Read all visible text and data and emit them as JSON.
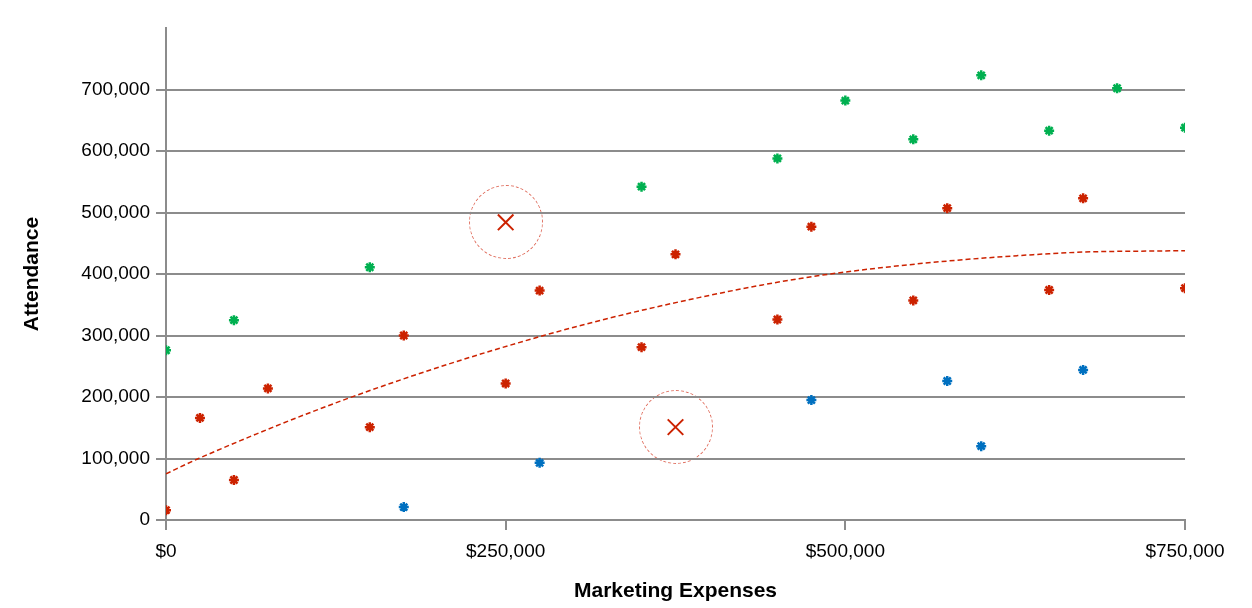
{
  "chart_data": {
    "type": "scatter",
    "xlabel": "Marketing Expenses",
    "ylabel": "Attendance",
    "xlim": [
      0,
      750000
    ],
    "ylim": [
      0,
      800000
    ],
    "xticks": [
      {
        "value": 0,
        "label": "$0"
      },
      {
        "value": 250000,
        "label": "$250,000"
      },
      {
        "value": 500000,
        "label": "$500,000"
      },
      {
        "value": 750000,
        "label": "$750,000"
      }
    ],
    "yticks": [
      0,
      {
        "value": 100000,
        "label": "100,000"
      },
      {
        "value": 200000,
        "label": "200,000"
      },
      {
        "value": 300000,
        "label": "300,000"
      },
      {
        "value": 400000,
        "label": "400,000"
      },
      {
        "value": 500000,
        "label": "500,000"
      },
      {
        "value": 600000,
        "label": "600,000"
      },
      {
        "value": 700000,
        "label": "700,000"
      }
    ],
    "grid": "y",
    "legend": false,
    "marker": "cross",
    "series": [
      {
        "color": "#00b050",
        "x": [
          0,
          50000,
          150000,
          350000,
          450000,
          500000,
          550000,
          600000,
          650000,
          700000,
          750000
        ],
        "values": [
          276000,
          325000,
          411000,
          542000,
          588000,
          682000,
          619000,
          723000,
          633000,
          702000,
          638000
        ]
      },
      {
        "color": "#cc2200",
        "x": [
          0,
          25000,
          50000,
          75000,
          150000,
          175000,
          250000,
          275000,
          350000,
          375000,
          450000,
          475000,
          550000,
          575000,
          650000,
          675000,
          750000
        ],
        "values": [
          16000,
          166000,
          65000,
          214000,
          151000,
          300000,
          222000,
          373000,
          281000,
          432000,
          326000,
          477000,
          357000,
          507000,
          374000,
          523000,
          377000
        ]
      },
      {
        "color": "#0070c0",
        "x": [
          175000,
          275000,
          475000,
          575000,
          600000,
          675000
        ],
        "values": [
          21000,
          93000,
          195000,
          226000,
          120000,
          244000
        ]
      },
      {
        "color": "#cc2200",
        "x": [
          250000,
          375000
        ],
        "values": [
          484000,
          151000
        ]
      },
      {
        "type": "line",
        "color": "#cc2200",
        "line_style": "dashed",
        "marker": "none",
        "x": [
          0,
          24000,
          138000,
          278000,
          393000,
          489000,
          658000,
          750000
        ],
        "values": [
          75000,
          100000,
          201000,
          300000,
          362000,
          400000,
          434000,
          438000
        ]
      }
    ]
  }
}
